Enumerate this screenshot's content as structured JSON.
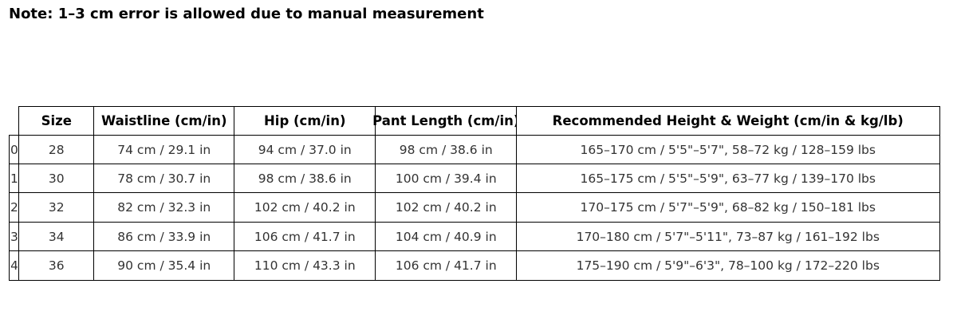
{
  "note": "Note: 1–3 cm error is allowed due to manual measurement",
  "table": {
    "columns": [
      "Size",
      "Waistline (cm/in)",
      "Hip (cm/in)",
      "Pant Length (cm/in)",
      "Recommended Height & Weight (cm/in & kg/lb)"
    ],
    "row_labels": [
      "0",
      "1",
      "2",
      "3",
      "4"
    ],
    "rows": [
      [
        "28",
        "74 cm / 29.1 in",
        "94 cm / 37.0 in",
        "98 cm / 38.6 in",
        "165–170 cm / 5'5\"–5'7\", 58–72 kg / 128–159 lbs"
      ],
      [
        "30",
        "78 cm / 30.7 in",
        "98 cm / 38.6 in",
        "100 cm / 39.4 in",
        "165–175 cm / 5'5\"–5'9\", 63–77 kg / 139–170 lbs"
      ],
      [
        "32",
        "82 cm / 32.3 in",
        "102 cm / 40.2 in",
        "102 cm / 40.2 in",
        "170–175 cm / 5'7\"–5'9\", 68–82 kg / 150–181 lbs"
      ],
      [
        "34",
        "86 cm / 33.9 in",
        "106 cm / 41.7 in",
        "104 cm / 40.9 in",
        "170–180 cm / 5'7\"–5'11\", 73–87 kg / 161–192 lbs"
      ],
      [
        "36",
        "90 cm / 35.4 in",
        "110 cm / 43.3 in",
        "106 cm / 41.7 in",
        "175–190 cm / 5'9\"–6'3\", 78–100 kg / 172–220 lbs"
      ]
    ]
  }
}
